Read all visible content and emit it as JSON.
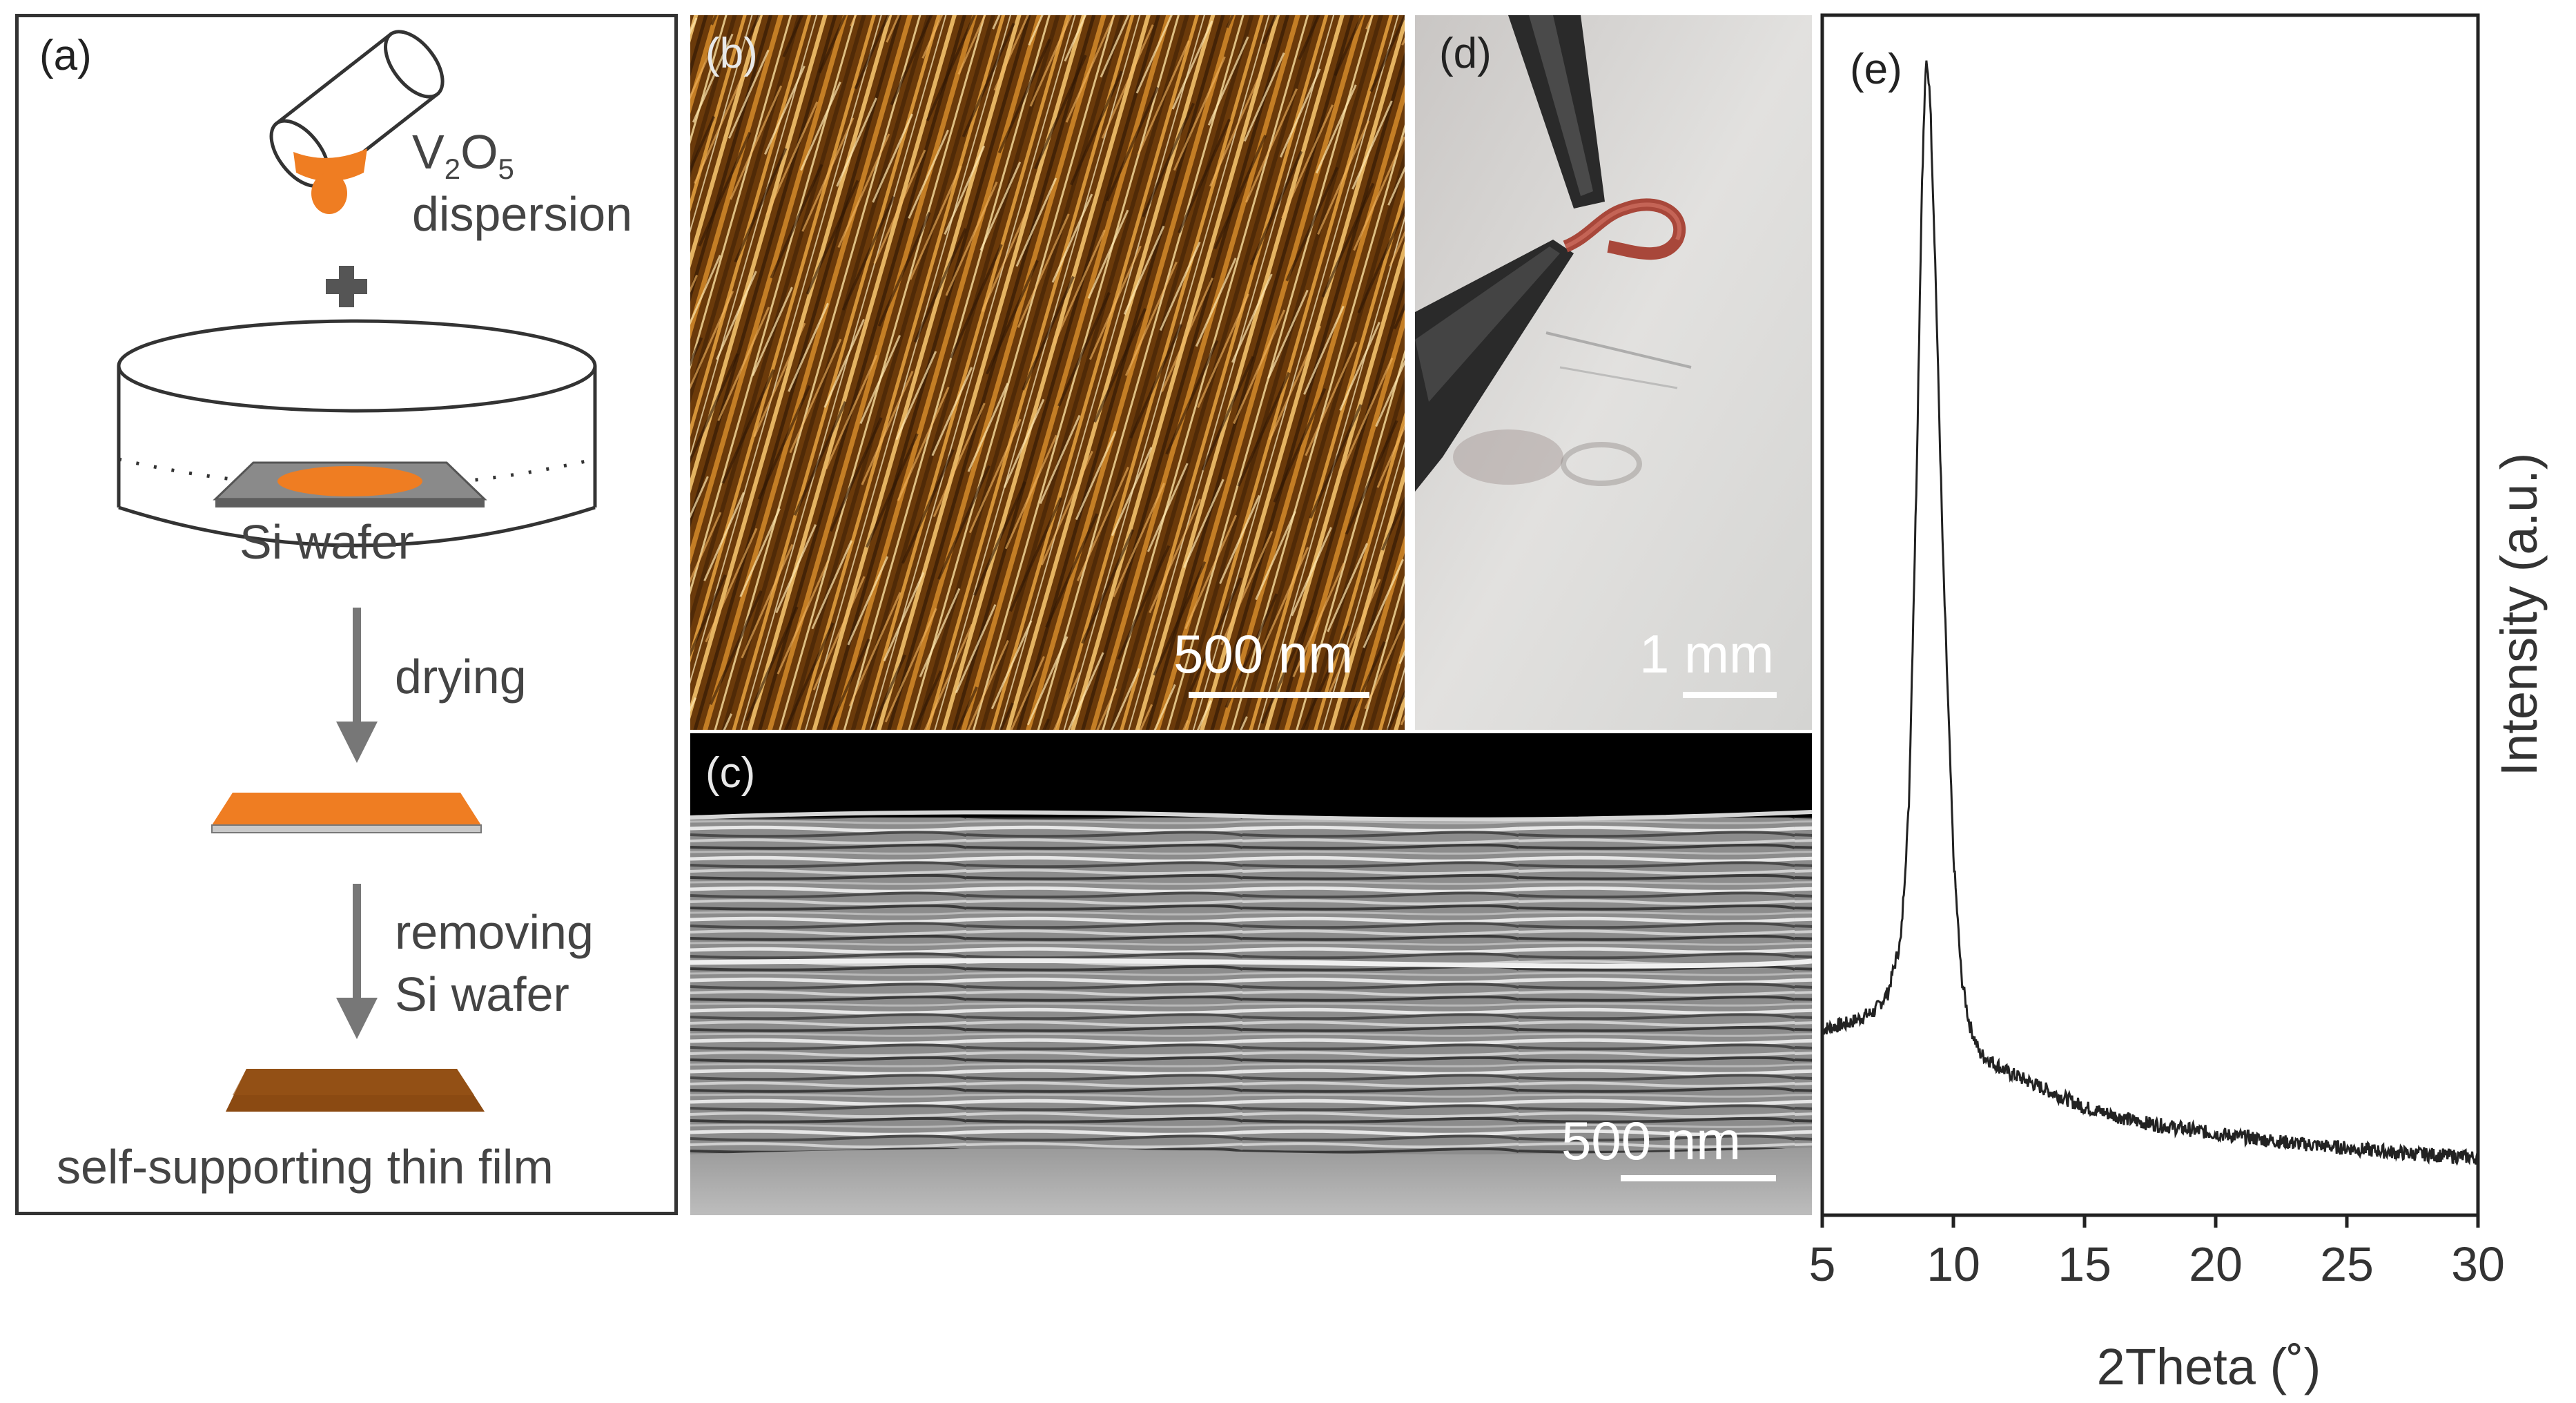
{
  "panels": {
    "a": {
      "label": "(a)",
      "vanadium_label_main": "V",
      "vanadium_sub_2": "2",
      "vanadium_O": "O",
      "vanadium_sub_5": "5",
      "dispersion_label": "dispersion",
      "si_wafer_label": "Si wafer",
      "step1_label": "drying",
      "step2_line1": "removing",
      "step2_line2": "Si wafer",
      "final_label": "self-supporting thin film",
      "colors": {
        "dispersion": "#ef7d22",
        "film_dark": "#8b4a12",
        "wafer": "#7a7a7a",
        "arrow": "#777777"
      }
    },
    "b": {
      "label": "(b)",
      "scale_text": "500 nm"
    },
    "c": {
      "label": "(c)",
      "scale_text": "500 nm"
    },
    "d": {
      "label": "(d)",
      "scale_text": "1 mm"
    },
    "e": {
      "label": "(e)"
    }
  },
  "chart_data": {
    "type": "line",
    "title": "",
    "xlabel": "2Theta (˚)",
    "ylabel": "Intensity (a.u.)",
    "xlim": [
      5,
      30
    ],
    "xticks": [
      5,
      10,
      15,
      20,
      25,
      30
    ],
    "ylim": [
      0,
      1
    ],
    "y_ticks_shown": false,
    "series": [
      {
        "color": "#222222",
        "x": [
          5.0,
          6.0,
          7.0,
          7.5,
          8.0,
          8.3,
          8.6,
          8.8,
          8.95,
          9.1,
          9.3,
          9.6,
          10.0,
          10.3,
          10.6,
          11.0,
          12.0,
          13.0,
          14.0,
          15.0,
          17.0,
          20.0,
          23.0,
          25.0,
          27.0,
          30.0
        ],
        "y": [
          0.155,
          0.16,
          0.17,
          0.185,
          0.23,
          0.34,
          0.62,
          0.86,
          0.96,
          0.94,
          0.8,
          0.55,
          0.3,
          0.2,
          0.16,
          0.135,
          0.12,
          0.11,
          0.1,
          0.09,
          0.078,
          0.068,
          0.06,
          0.056,
          0.052,
          0.048
        ]
      }
    ]
  }
}
